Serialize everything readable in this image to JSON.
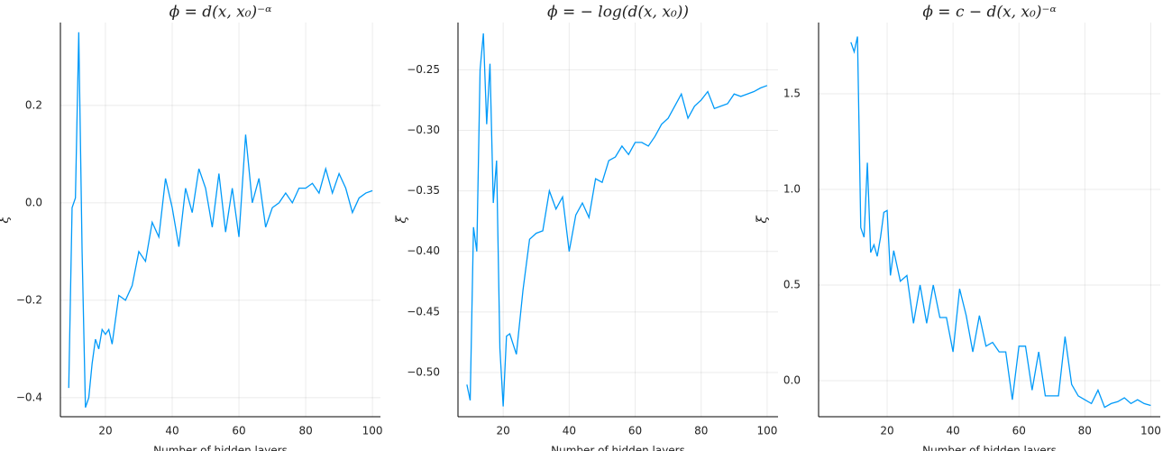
{
  "chart_data": [
    {
      "type": "line",
      "title": "ϕ = d(x, x₀)⁻ᵅ",
      "xlabel": "Number of hidden layers",
      "ylabel": "ξ",
      "x": [
        9,
        10,
        11,
        12,
        13,
        14,
        15,
        16,
        17,
        18,
        19,
        20,
        21,
        22,
        24,
        26,
        28,
        30,
        32,
        34,
        36,
        38,
        40,
        42,
        44,
        46,
        48,
        50,
        52,
        54,
        56,
        58,
        60,
        62,
        64,
        66,
        68,
        70,
        72,
        74,
        76,
        78,
        80,
        82,
        84,
        86,
        88,
        90,
        92,
        94,
        96,
        98,
        100
      ],
      "series": [
        {
          "color": "#009af9",
          "values": [
            -0.38,
            -0.01,
            0.01,
            0.35,
            -0.1,
            -0.42,
            -0.4,
            -0.33,
            -0.28,
            -0.3,
            -0.26,
            -0.27,
            -0.26,
            -0.29,
            -0.19,
            -0.2,
            -0.17,
            -0.1,
            -0.12,
            -0.04,
            -0.07,
            0.05,
            -0.01,
            -0.09,
            0.03,
            -0.02,
            0.07,
            0.03,
            -0.05,
            0.06,
            -0.06,
            0.03,
            -0.07,
            0.14,
            0.0,
            0.05,
            -0.05,
            -0.01,
            0.0,
            0.02,
            0.0,
            0.03,
            0.03,
            0.04,
            0.02,
            0.07,
            0.02,
            0.06,
            0.03,
            -0.02,
            0.01,
            0.02,
            0.025
          ]
        }
      ],
      "xlim": [
        6.5,
        102.4
      ],
      "xticks": [
        20,
        40,
        60,
        80,
        100
      ],
      "ylim": [
        -0.439,
        0.37
      ],
      "yticks": [
        {
          "value": -0.4,
          "label": "−0.4"
        },
        {
          "value": -0.2,
          "label": "−0.2"
        },
        {
          "value": 0,
          "label": "0.0"
        },
        0.2
      ],
      "grid": true
    },
    {
      "type": "line",
      "title": "ϕ = − log(d(x, x₀))",
      "xlabel": "Number of hidden layers",
      "ylabel": "ξ",
      "x": [
        9,
        10,
        11,
        12,
        13,
        14,
        15,
        16,
        17,
        18,
        19,
        20,
        21,
        22,
        24,
        26,
        28,
        30,
        32,
        34,
        36,
        38,
        40,
        42,
        44,
        46,
        48,
        50,
        52,
        54,
        56,
        58,
        60,
        62,
        64,
        66,
        68,
        70,
        72,
        74,
        76,
        78,
        80,
        82,
        84,
        86,
        88,
        90,
        92,
        94,
        96,
        98,
        100
      ],
      "series": [
        {
          "color": "#009af9",
          "values": [
            -0.51,
            -0.523,
            -0.38,
            -0.4,
            -0.25,
            -0.22,
            -0.295,
            -0.245,
            -0.36,
            -0.325,
            -0.48,
            -0.528,
            -0.47,
            -0.468,
            -0.485,
            -0.432,
            -0.39,
            -0.385,
            -0.383,
            -0.35,
            -0.365,
            -0.355,
            -0.4,
            -0.37,
            -0.36,
            -0.372,
            -0.34,
            -0.343,
            -0.325,
            -0.322,
            -0.313,
            -0.32,
            -0.31,
            -0.31,
            -0.313,
            -0.305,
            -0.295,
            -0.29,
            -0.28,
            -0.27,
            -0.29,
            -0.28,
            -0.275,
            -0.268,
            -0.282,
            -0.28,
            -0.278,
            -0.27,
            -0.272,
            -0.27,
            -0.268,
            -0.265,
            -0.263
          ]
        }
      ],
      "xlim": [
        6.3,
        103.3
      ],
      "xticks": [
        20,
        40,
        60,
        80,
        100
      ],
      "ylim": [
        -0.5365,
        -0.211
      ],
      "yticks": [
        {
          "value": -0.5,
          "label": "−0.50"
        },
        {
          "value": -0.45,
          "label": "−0.45"
        },
        {
          "value": -0.4,
          "label": "−0.40"
        },
        {
          "value": -0.35,
          "label": "−0.35"
        },
        {
          "value": -0.3,
          "label": "−0.30"
        },
        {
          "value": -0.25,
          "label": "−0.25"
        }
      ],
      "grid": true
    },
    {
      "type": "line",
      "title": "ϕ = c − d(x, x₀)⁻ᵅ",
      "xlabel": "Number of hidden layers",
      "ylabel": "ξ",
      "x": [
        9,
        10,
        11,
        12,
        13,
        14,
        15,
        16,
        17,
        18,
        19,
        20,
        21,
        22,
        24,
        26,
        28,
        30,
        32,
        34,
        36,
        38,
        40,
        42,
        44,
        46,
        48,
        50,
        52,
        54,
        56,
        58,
        60,
        62,
        64,
        66,
        68,
        70,
        72,
        74,
        76,
        78,
        80,
        82,
        84,
        86,
        88,
        90,
        92,
        94,
        96,
        98,
        100
      ],
      "series": [
        {
          "color": "#009af9",
          "values": [
            1.77,
            1.72,
            1.8,
            0.8,
            0.75,
            1.14,
            0.67,
            0.71,
            0.65,
            0.75,
            0.88,
            0.89,
            0.55,
            0.68,
            0.52,
            0.55,
            0.3,
            0.5,
            0.3,
            0.5,
            0.33,
            0.33,
            0.15,
            0.48,
            0.34,
            0.15,
            0.34,
            0.18,
            0.2,
            0.15,
            0.15,
            -0.1,
            0.18,
            0.18,
            -0.05,
            0.15,
            -0.08,
            -0.08,
            -0.08,
            0.23,
            -0.02,
            -0.08,
            -0.1,
            -0.12,
            -0.05,
            -0.14,
            -0.12,
            -0.11,
            -0.09,
            -0.12,
            -0.1,
            -0.12,
            -0.13
          ]
        }
      ],
      "xlim": [
        -0.8,
        102.9
      ],
      "xticks": [
        20,
        40,
        60,
        80,
        100
      ],
      "ylim": [
        -0.189,
        1.873
      ],
      "yticks": [
        {
          "value": 0,
          "label": "0.0"
        },
        0.5,
        {
          "value": 1,
          "label": "1.0"
        },
        1.5
      ],
      "grid": true
    }
  ]
}
